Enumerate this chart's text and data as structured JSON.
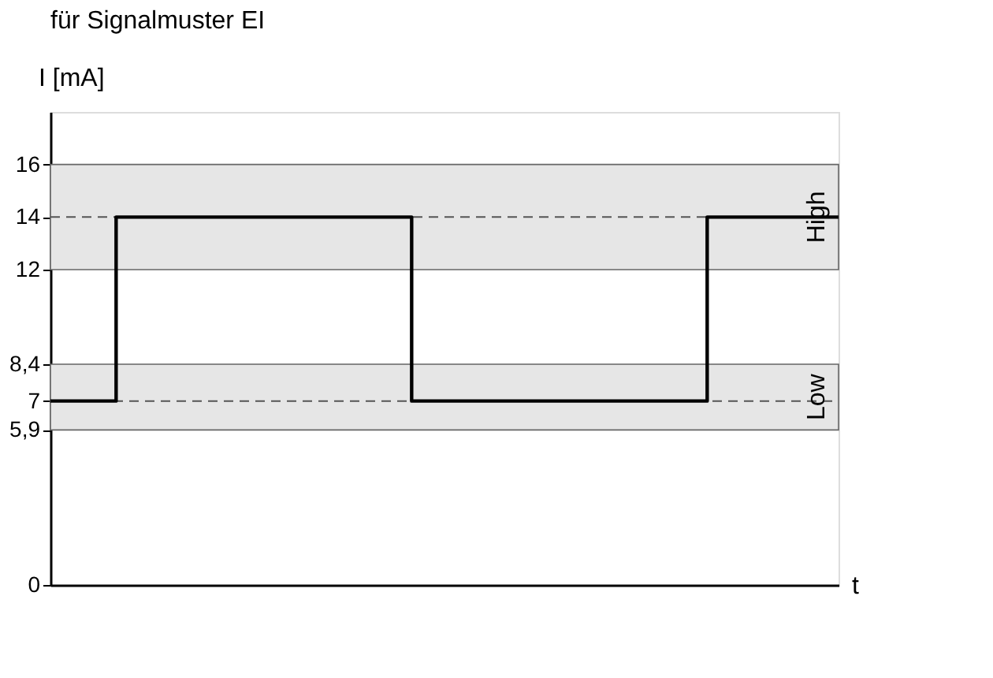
{
  "chart_data": {
    "type": "step",
    "title": "für Signalmuster EI",
    "xlabel": "t",
    "ylabel": "I [mA]",
    "categories": [
      null,
      null,
      null,
      null,
      null,
      null,
      null,
      null,
      null,
      null,
      null,
      null,
      null,
      null,
      null,
      null,
      null,
      null,
      null,
      null,
      null,
      null,
      null,
      null,
      null
    ],
    "series": [
      {
        "color": "#000000",
        "values": [
          7,
          7,
          14,
          14,
          14,
          14,
          14,
          14,
          14,
          14,
          14,
          7,
          7,
          7,
          7,
          7,
          7,
          7,
          7,
          7,
          14,
          14,
          14,
          14,
          14
        ]
      }
    ],
    "ylim": [
      0,
      18
    ],
    "yticks": [
      0,
      {
        "value": 5.9,
        "label": "5,9"
      },
      7,
      {
        "value": 8.4,
        "label": "8,4"
      },
      12,
      14,
      16
    ],
    "tick_labels": "y",
    "grid": false,
    "ref_lines": [
      {
        "axis": "y",
        "value": 7,
        "line_style": "dashed",
        "color": "#555555"
      },
      {
        "axis": "y",
        "value": 14,
        "line_style": "dashed",
        "color": "#555555"
      }
    ],
    "bands": [
      {
        "axis": "y",
        "from": 5.9,
        "to": 8.4,
        "label": "Low",
        "color": "#e6e6e6"
      },
      {
        "axis": "y",
        "from": 12,
        "to": 16,
        "label": "High",
        "color": "#e6e6e6"
      }
    ]
  }
}
